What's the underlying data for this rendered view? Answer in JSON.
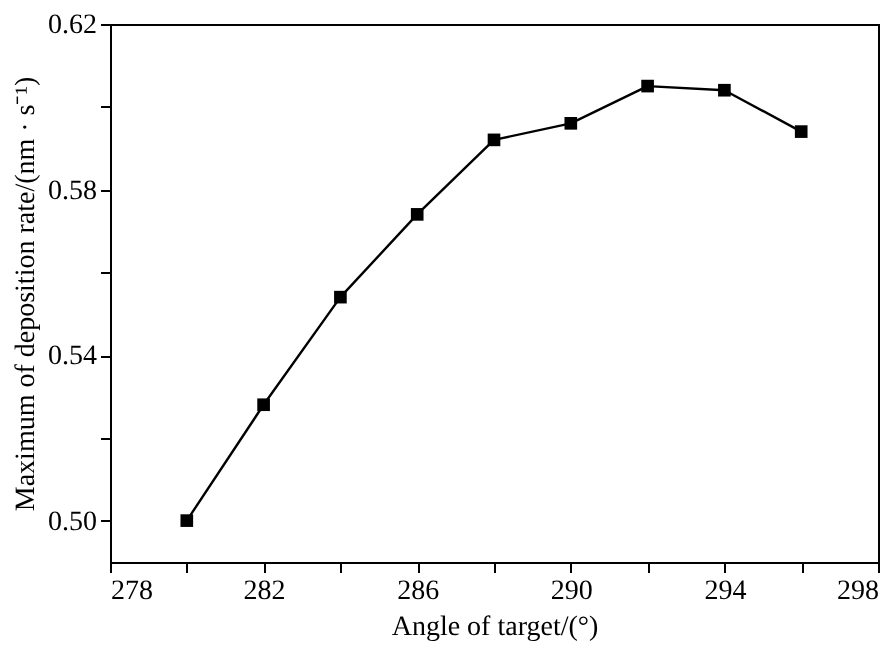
{
  "chart_data": {
    "type": "line",
    "xlabel": "Angle of target/(°)",
    "ylabel": "Maximum of deposition rate/(nm · s⁻¹)",
    "x": [
      280,
      282,
      284,
      286,
      288,
      290,
      292,
      294,
      296
    ],
    "series": [
      {
        "color": "#000000",
        "values": [
          0.5,
          0.528,
          0.554,
          0.574,
          0.592,
          0.596,
          0.605,
          0.604,
          0.594
        ]
      }
    ],
    "xlim": [
      278,
      298
    ],
    "ylim": [
      0.49,
      0.62
    ],
    "xticks": [
      278,
      {
        "value": 280,
        "label": null
      },
      282,
      {
        "value": 284,
        "label": null
      },
      286,
      {
        "value": 288,
        "label": null
      },
      290,
      {
        "value": 292,
        "label": null
      },
      294,
      {
        "value": 296,
        "label": null
      },
      298
    ],
    "yticks": [
      {
        "value": 0.5,
        "label": "0.50"
      },
      {
        "value": 0.52,
        "label": null
      },
      0.54,
      {
        "value": 0.56,
        "label": null
      },
      0.58,
      {
        "value": 0.6,
        "label": null
      },
      0.62
    ],
    "marker": "square",
    "line_style": "solid",
    "grid": false
  }
}
